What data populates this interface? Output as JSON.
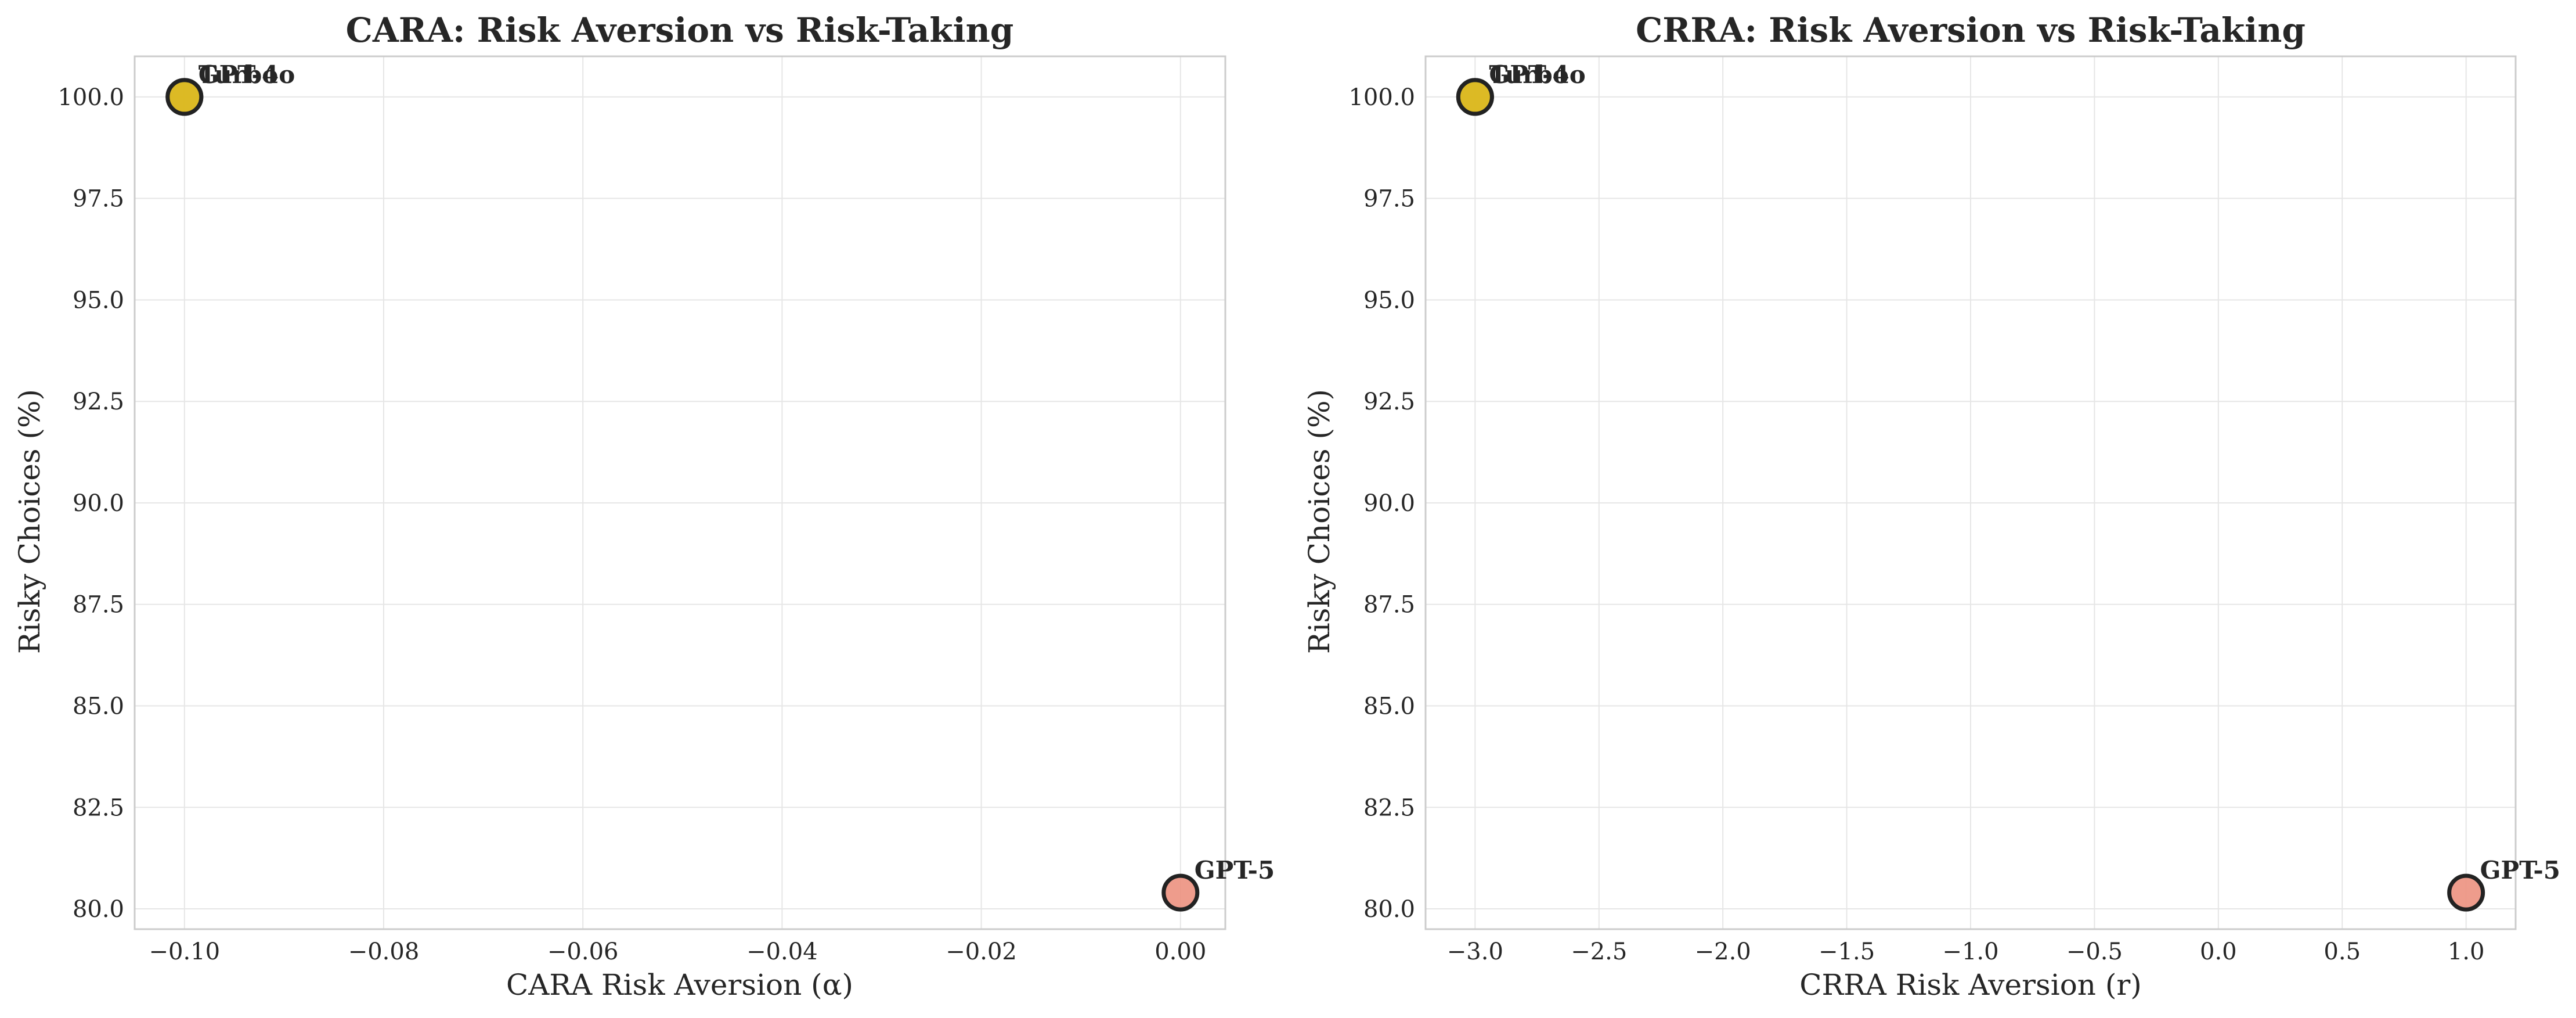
{
  "chart_data": [
    {
      "type": "scatter",
      "title": "CARA: Risk Aversion vs Risk-Taking",
      "xlabel": "CARA Risk Aversion (α)",
      "ylabel": "Risky Choices (%)",
      "xlim": [
        -0.105,
        0.0045
      ],
      "ylim": [
        79.5,
        101.0
      ],
      "xticks": [
        "−0.10",
        "−0.08",
        "−0.06",
        "−0.04",
        "−0.02",
        "0.00"
      ],
      "xtick_values": [
        -0.1,
        -0.08,
        -0.06,
        -0.04,
        -0.02,
        0.0
      ],
      "yticks": [
        "80.0",
        "82.5",
        "85.0",
        "87.5",
        "90.0",
        "92.5",
        "95.0",
        "97.5",
        "100.0"
      ],
      "ytick_values": [
        80.0,
        82.5,
        85.0,
        87.5,
        90.0,
        92.5,
        95.0,
        97.5,
        100.0
      ],
      "grid": true,
      "points": [
        {
          "label": "GPT-4o",
          "x": -0.1,
          "y": 100.0,
          "color": "#f2e205"
        },
        {
          "label": "Turbo",
          "x": -0.1,
          "y": 100.0,
          "color": "#d9b526"
        },
        {
          "label": "GPT-5",
          "x": 0.0,
          "y": 80.4,
          "color": "#ec917f"
        }
      ]
    },
    {
      "type": "scatter",
      "title": "CRRA: Risk Aversion vs Risk-Taking",
      "xlabel": "CRRA Risk Aversion (r)",
      "ylabel": "Risky Choices (%)",
      "xlim": [
        -3.2,
        1.2
      ],
      "ylim": [
        79.5,
        101.0
      ],
      "xticks": [
        "−3.0",
        "−2.5",
        "−2.0",
        "−1.5",
        "−1.0",
        "−0.5",
        "0.0",
        "0.5",
        "1.0"
      ],
      "xtick_values": [
        -3.0,
        -2.5,
        -2.0,
        -1.5,
        -1.0,
        -0.5,
        0.0,
        0.5,
        1.0
      ],
      "yticks": [
        "80.0",
        "82.5",
        "85.0",
        "87.5",
        "90.0",
        "92.5",
        "95.0",
        "97.5",
        "100.0"
      ],
      "ytick_values": [
        80.0,
        82.5,
        85.0,
        87.5,
        90.0,
        92.5,
        95.0,
        97.5,
        100.0
      ],
      "grid": true,
      "points": [
        {
          "label": "GPT-4o",
          "x": -3.0,
          "y": 100.0,
          "color": "#f2e205"
        },
        {
          "label": "Turbo",
          "x": -3.0,
          "y": 100.0,
          "color": "#d9b526"
        },
        {
          "label": "GPT-5",
          "x": 1.0,
          "y": 80.4,
          "color": "#ec917f"
        }
      ]
    }
  ]
}
